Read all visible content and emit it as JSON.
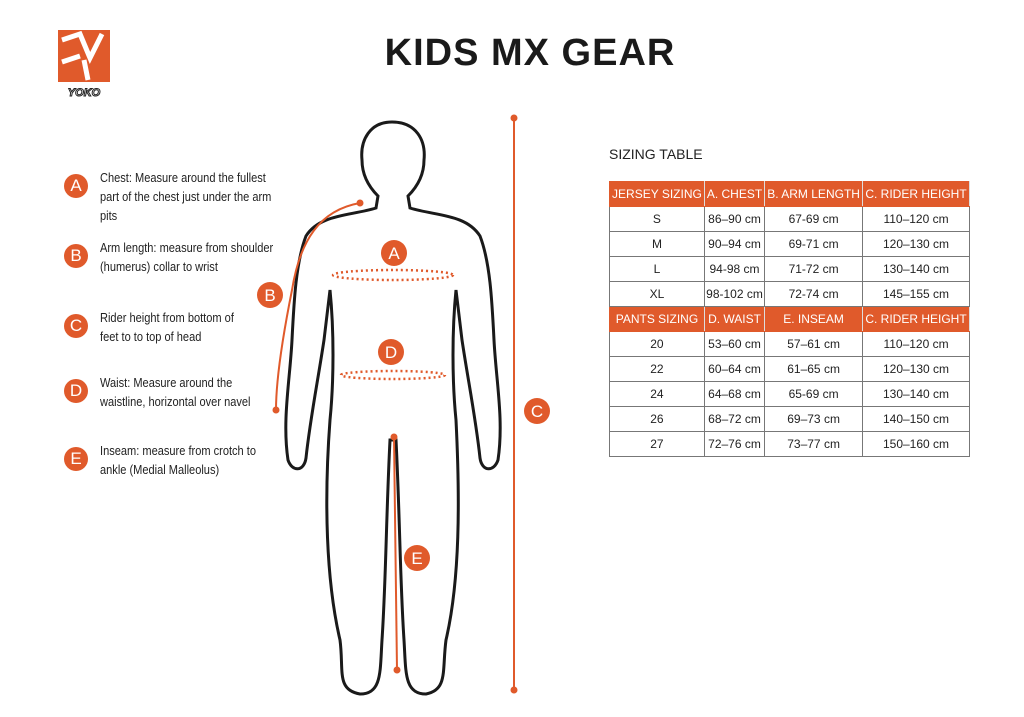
{
  "brand": "YOKO",
  "title": "KIDS MX GEAR",
  "colors": {
    "accent": "#e05a2b",
    "text": "#1a1a1a"
  },
  "legend": [
    {
      "letter": "A",
      "text": "Chest: Measure around  the fullest part of the chest just under the arm pits"
    },
    {
      "letter": "B",
      "text": "Arm length: measure from shoulder (humerus) collar to wrist"
    },
    {
      "letter": "C",
      "text": "Rider height from bottom of feet to to top of head"
    },
    {
      "letter": "D",
      "text": "Waist: Measure around the waistline, horizontal over navel"
    },
    {
      "letter": "E",
      "text": "Inseam: measure from crotch to ankle (Medial Malleolus)"
    }
  ],
  "figure_labels": {
    "a": "A",
    "b": "B",
    "c": "C",
    "d": "D",
    "e": "E"
  },
  "table": {
    "title": "SIZING TABLE",
    "jersey_header": [
      "JERSEY SIZING",
      "A. CHEST",
      "B. ARM LENGTH",
      "C. RIDER HEIGHT"
    ],
    "jersey_rows": [
      [
        "S",
        "86–90 cm",
        "67-69 cm",
        "110–120 cm"
      ],
      [
        "M",
        "90–94 cm",
        "69-71 cm",
        "120–130 cm"
      ],
      [
        "L",
        "94-98 cm",
        "71-72 cm",
        "130–140 cm"
      ],
      [
        "XL",
        "98-102 cm",
        "72-74 cm",
        "145–155 cm"
      ]
    ],
    "pants_header": [
      "PANTS SIZING",
      "D. WAIST",
      "E. INSEAM",
      "C. RIDER HEIGHT"
    ],
    "pants_rows": [
      [
        "20",
        "53–60 cm",
        "57–61 cm",
        "110–120 cm"
      ],
      [
        "22",
        "60–64 cm",
        "61–65 cm",
        "120–130 cm"
      ],
      [
        "24",
        "64–68 cm",
        "65-69 cm",
        "130–140 cm"
      ],
      [
        "26",
        "68–72 cm",
        "69–73 cm",
        "140–150 cm"
      ],
      [
        "27",
        "72–76 cm",
        "73–77 cm",
        "150–160 cm"
      ]
    ]
  }
}
